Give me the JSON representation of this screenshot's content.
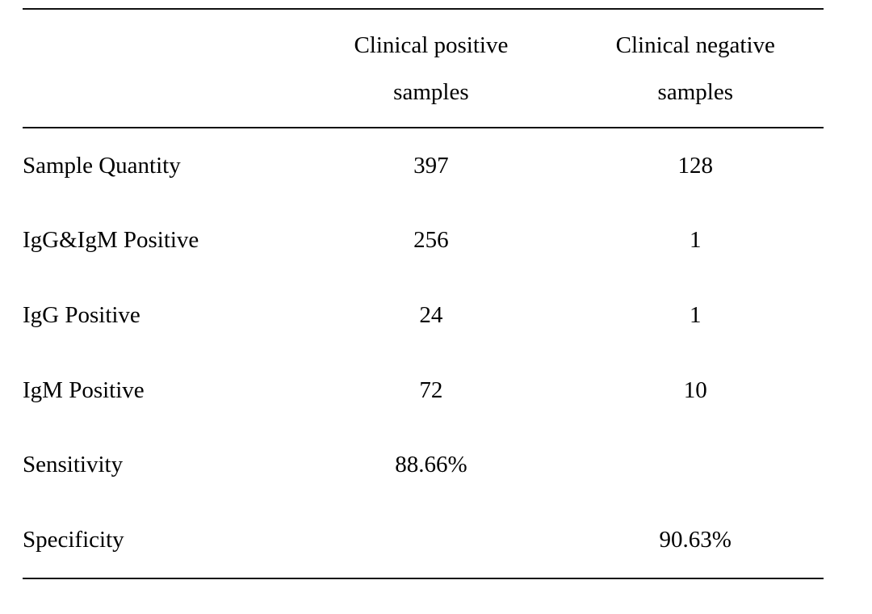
{
  "table": {
    "columns": {
      "label": "",
      "positive": "Clinical positive\nsamples",
      "negative": "Clinical negative\nsamples"
    },
    "rows": [
      {
        "label": "Sample Quantity",
        "positive": "397",
        "negative": "128"
      },
      {
        "label": "IgG&IgM Positive",
        "positive": "256",
        "negative": "1"
      },
      {
        "label": "IgG Positive",
        "positive": "24",
        "negative": "1"
      },
      {
        "label": "IgM Positive",
        "positive": "72",
        "negative": "10"
      },
      {
        "label": "Sensitivity",
        "positive": "88.66%",
        "negative": ""
      },
      {
        "label": "Specificity",
        "positive": "",
        "negative": "90.63%"
      }
    ]
  },
  "chart_data": {
    "type": "table",
    "categories": [
      "Sample Quantity",
      "IgG&IgM Positive",
      "IgG Positive",
      "IgM Positive",
      "Sensitivity",
      "Specificity"
    ],
    "series": [
      {
        "name": "Clinical positive samples",
        "values": [
          "397",
          "256",
          "24",
          "72",
          "88.66%",
          ""
        ]
      },
      {
        "name": "Clinical negative samples",
        "values": [
          "128",
          "1",
          "1",
          "10",
          "",
          "90.63%"
        ]
      }
    ],
    "title": ""
  },
  "colors": {
    "text": "#000000",
    "rule": "#111111",
    "background": "#ffffff"
  }
}
